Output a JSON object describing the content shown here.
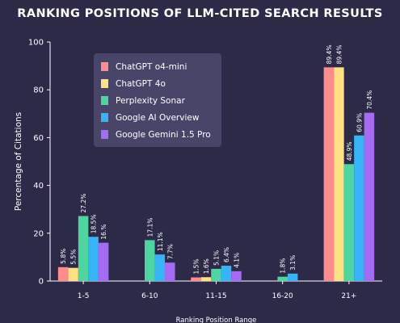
{
  "chart_data": {
    "type": "bar",
    "title": "RANKING POSITIONS OF LLM-CITED SEARCH RESULTS",
    "xlabel": "Ranking Position Range",
    "ylabel": "Percentage of Citations",
    "ylim": [
      0,
      100
    ],
    "yticks": [
      0,
      20,
      40,
      60,
      80,
      100
    ],
    "grid": false,
    "legend_position": "top-left",
    "categories": [
      "1-5",
      "6-10",
      "11-15",
      "16-20",
      "21+"
    ],
    "series": [
      {
        "name": "ChatGPT o4-mini",
        "color": "#ff8c8c",
        "values": [
          5.8,
          null,
          1.5,
          null,
          89.4
        ],
        "labels": [
          "5.8%",
          "",
          "1.5%",
          "",
          "89.4%"
        ]
      },
      {
        "name": "ChatGPT 4o",
        "color": "#ffe082",
        "values": [
          5.5,
          null,
          1.6,
          null,
          89.4
        ],
        "labels": [
          "5.5%",
          "",
          "1.6%",
          "",
          "89.4%"
        ]
      },
      {
        "name": "Perplexity Sonar",
        "color": "#4fd6a0",
        "values": [
          27.2,
          17.1,
          5.1,
          1.8,
          48.9
        ],
        "labels": [
          "27.2%",
          "17.1%",
          "5.1%",
          "1.8%",
          "48.9%"
        ]
      },
      {
        "name": "Google AI Overview",
        "color": "#36b4f5",
        "values": [
          18.5,
          11.1,
          6.4,
          3.1,
          60.9
        ],
        "labels": [
          "18.5%",
          "11.1%",
          "6.4%",
          "3.1%",
          "60.9%"
        ]
      },
      {
        "name": "Google Gemini 1.5 Pro",
        "color": "#a56bf2",
        "values": [
          16.0,
          7.7,
          4.1,
          null,
          70.4
        ],
        "labels": [
          "16.%",
          "7.7%",
          "4.1%",
          "",
          "70.4%"
        ]
      }
    ]
  }
}
